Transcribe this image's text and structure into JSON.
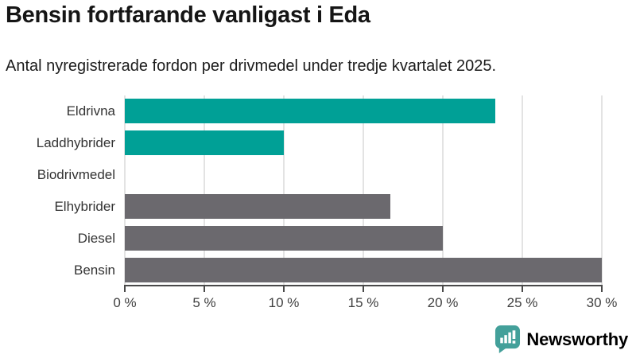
{
  "header": {
    "title": "Bensin fortfarande vanligast i Eda",
    "subtitle": "Antal nyregistrerade fordon per drivmedel under tredje kvartalet 2025."
  },
  "chart_data": {
    "type": "bar",
    "orientation": "horizontal",
    "title": "Bensin fortfarande vanligast i Eda",
    "subtitle": "Antal nyregistrerade fordon per drivmedel under tredje kvartalet 2025.",
    "categories": [
      "Eldrivna",
      "Laddhybrider",
      "Biodrivmedel",
      "Elhybrider",
      "Diesel",
      "Bensin"
    ],
    "values": [
      23.3,
      10,
      0,
      16.7,
      20,
      30
    ],
    "bar_colors": [
      "#00a096",
      "#00a096",
      "#6b696e",
      "#6b696e",
      "#6b696e",
      "#6b696e"
    ],
    "unit": "%",
    "x_ticks": [
      "0 %",
      "5 %",
      "10 %",
      "15 %",
      "20 %",
      "25 %",
      "30 %"
    ],
    "x_tick_values": [
      0,
      5,
      10,
      15,
      20,
      25,
      30
    ],
    "xlim": [
      0,
      30
    ],
    "xlabel": "",
    "ylabel": "",
    "grid": true,
    "legend": "none"
  },
  "colors": {
    "teal": "#00a096",
    "gray": "#6b696e",
    "gridline": "#e3e3e3",
    "axis": "#4a4a4a",
    "category_label": "#333333",
    "logo_teal": "#43a09a"
  },
  "branding": {
    "logo_text": "Newsworthy",
    "logo_icon": "chart-speech-bubble-icon"
  }
}
